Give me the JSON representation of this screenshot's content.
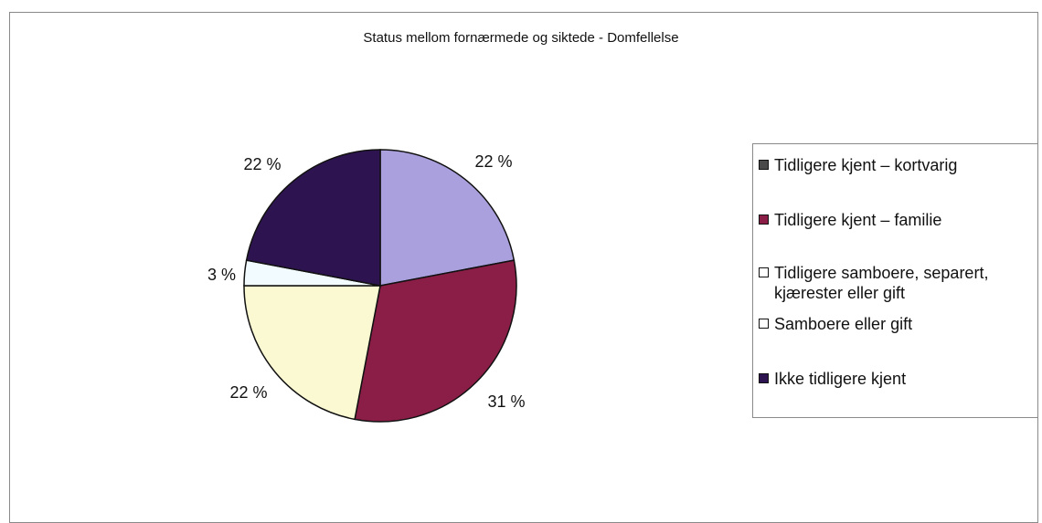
{
  "chart_data": {
    "type": "pie",
    "title": "Status mellom fornærmede og siktede - Domfellelse",
    "slices": [
      {
        "name": "Tidligere kjent – kortvarig",
        "value": 22,
        "label": "22 %",
        "color": "#aaa0de"
      },
      {
        "name": "Tidligere kjent – familie",
        "value": 31,
        "label": "31 %",
        "color": "#8b1e47"
      },
      {
        "name": "Tidligere samboere, separert, kjærester eller gift",
        "value": 22,
        "label": "22 %",
        "color": "#fbf9d2"
      },
      {
        "name": "Samboere eller gift",
        "value": 3,
        "label": "3 %",
        "color": "#f2fbff"
      },
      {
        "name": "Ikke tidligere kjent",
        "value": 22,
        "label": "22 %",
        "color": "#2d1450"
      }
    ],
    "start_angle": 0,
    "direction": "clockwise",
    "legend_position": "right"
  },
  "legend": {
    "items": [
      {
        "label": "Tidligere kjent – kortvarig",
        "color": "#4a4a4a"
      },
      {
        "label": "Tidligere kjent – familie",
        "color": "#8b1e47"
      },
      {
        "label": "Tidligere samboere, separert, kjærester eller gift",
        "color": "#ffffff"
      },
      {
        "label": "Samboere eller gift",
        "color": "#ffffff"
      },
      {
        "label": "Ikke tidligere kjent",
        "color": "#2d1450"
      }
    ]
  }
}
